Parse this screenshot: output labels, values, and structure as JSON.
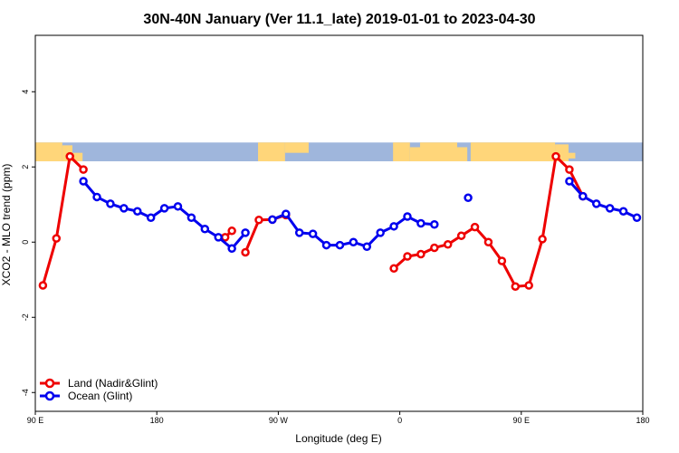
{
  "chart_data": {
    "type": "line",
    "title": "30N-40N January (Ver 11.1_late)   2019-01-01 to 2023-04-30",
    "xlabel": "Longitude (deg E)",
    "ylabel": "XCO2 - MLO trend (ppm)",
    "xlim": [
      90,
      450
    ],
    "ylim": [
      -4.5,
      5.5
    ],
    "x_ticks": [
      {
        "value": 90,
        "label": "90 E"
      },
      {
        "value": 162,
        "label": "180"
      },
      {
        "value": 234,
        "label": "90 W"
      },
      {
        "value": 306,
        "label": "0"
      },
      {
        "value": 378,
        "label": "90 E"
      },
      {
        "value": 450,
        "label": "180"
      }
    ],
    "y_ticks": [
      {
        "value": -4,
        "label": "-4"
      },
      {
        "value": -2,
        "label": "-2"
      },
      {
        "value": 0,
        "label": "0"
      },
      {
        "value": 2,
        "label": "2"
      },
      {
        "value": 4,
        "label": "4"
      }
    ],
    "legend_position": "bottom-left",
    "series": [
      {
        "name": "Land (Nadir&Glint)",
        "color": "#ee0000",
        "segments": [
          [
            [
              94.5,
              -1.15
            ],
            [
              102.5,
              0.1
            ],
            [
              110.5,
              2.28
            ],
            [
              118.5,
              1.93
            ]
          ],
          [
            [
              202.5,
              0.13
            ],
            [
              206.5,
              0.3
            ]
          ],
          [
            [
              214.5,
              -0.27
            ],
            [
              222.5,
              0.59
            ],
            [
              230.5,
              0.6
            ],
            [
              238.5,
              0.72
            ]
          ],
          [
            [
              302.5,
              -0.7
            ],
            [
              310.5,
              -0.38
            ],
            [
              318.5,
              -0.32
            ],
            [
              326.5,
              -0.15
            ],
            [
              334.5,
              -0.06
            ],
            [
              342.5,
              0.17
            ],
            [
              350.5,
              0.4
            ],
            [
              358.5,
              0.0
            ],
            [
              366.5,
              -0.5
            ],
            [
              374.5,
              -1.18
            ],
            [
              382.5,
              -1.15
            ],
            [
              390.5,
              0.08
            ],
            [
              398.5,
              2.28
            ],
            [
              406.5,
              1.93
            ],
            [
              414.5,
              1.22
            ]
          ]
        ]
      },
      {
        "name": "Ocean (Glint)",
        "color": "#0000ee",
        "segments": [
          [
            [
              118.5,
              1.62
            ],
            [
              126.5,
              1.2
            ],
            [
              134.5,
              1.02
            ],
            [
              142.5,
              0.9
            ],
            [
              150.5,
              0.82
            ],
            [
              158.5,
              0.65
            ],
            [
              166.5,
              0.9
            ],
            [
              174.5,
              0.95
            ],
            [
              182.5,
              0.65
            ],
            [
              190.5,
              0.35
            ],
            [
              198.5,
              0.13
            ],
            [
              206.5,
              -0.17
            ],
            [
              214.5,
              0.25
            ]
          ],
          [
            [
              230.5,
              0.6
            ],
            [
              238.5,
              0.75
            ],
            [
              246.5,
              0.25
            ],
            [
              254.5,
              0.22
            ],
            [
              262.5,
              -0.08
            ],
            [
              270.5,
              -0.08
            ],
            [
              278.5,
              0.0
            ],
            [
              286.5,
              -0.12
            ],
            [
              294.5,
              0.25
            ],
            [
              302.5,
              0.42
            ],
            [
              310.5,
              0.68
            ],
            [
              318.5,
              0.5
            ],
            [
              326.5,
              0.47
            ]
          ],
          [
            [
              346.5,
              1.18
            ]
          ],
          [
            [
              406.5,
              1.62
            ],
            [
              414.5,
              1.22
            ],
            [
              422.5,
              1.02
            ],
            [
              430.5,
              0.9
            ],
            [
              438.5,
              0.82
            ],
            [
              446.5,
              0.65
            ]
          ]
        ]
      }
    ]
  },
  "map_strip": {
    "y_range": [
      2.15,
      2.65
    ],
    "ocean_color": "#9fb6dc",
    "land_color": "#ffd67a"
  }
}
